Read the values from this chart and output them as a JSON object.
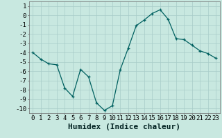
{
  "x": [
    0,
    1,
    2,
    3,
    4,
    5,
    6,
    7,
    8,
    9,
    10,
    11,
    12,
    13,
    14,
    15,
    16,
    17,
    18,
    19,
    20,
    21,
    22,
    23
  ],
  "y": [
    -4.0,
    -4.7,
    -5.2,
    -5.3,
    -7.8,
    -8.7,
    -5.8,
    -6.6,
    -9.4,
    -10.2,
    -9.7,
    -5.8,
    -3.5,
    -1.1,
    -0.5,
    0.2,
    0.6,
    -0.4,
    -2.5,
    -2.6,
    -3.2,
    -3.8,
    -4.1,
    -4.6
  ],
  "xlabel": "Humidex (Indice chaleur)",
  "ylabel": "",
  "title": "",
  "xlim": [
    -0.5,
    23.5
  ],
  "ylim": [
    -10.5,
    1.5
  ],
  "yticks": [
    1,
    0,
    -1,
    -2,
    -3,
    -4,
    -5,
    -6,
    -7,
    -8,
    -9,
    -10
  ],
  "xticks": [
    0,
    1,
    2,
    3,
    4,
    5,
    6,
    7,
    8,
    9,
    10,
    11,
    12,
    13,
    14,
    15,
    16,
    17,
    18,
    19,
    20,
    21,
    22,
    23
  ],
  "line_color": "#006060",
  "marker": "+",
  "bg_color": "#c8e8e0",
  "grid_color": "#a8ccc8",
  "tick_fontsize": 6.5,
  "xlabel_fontsize": 8
}
